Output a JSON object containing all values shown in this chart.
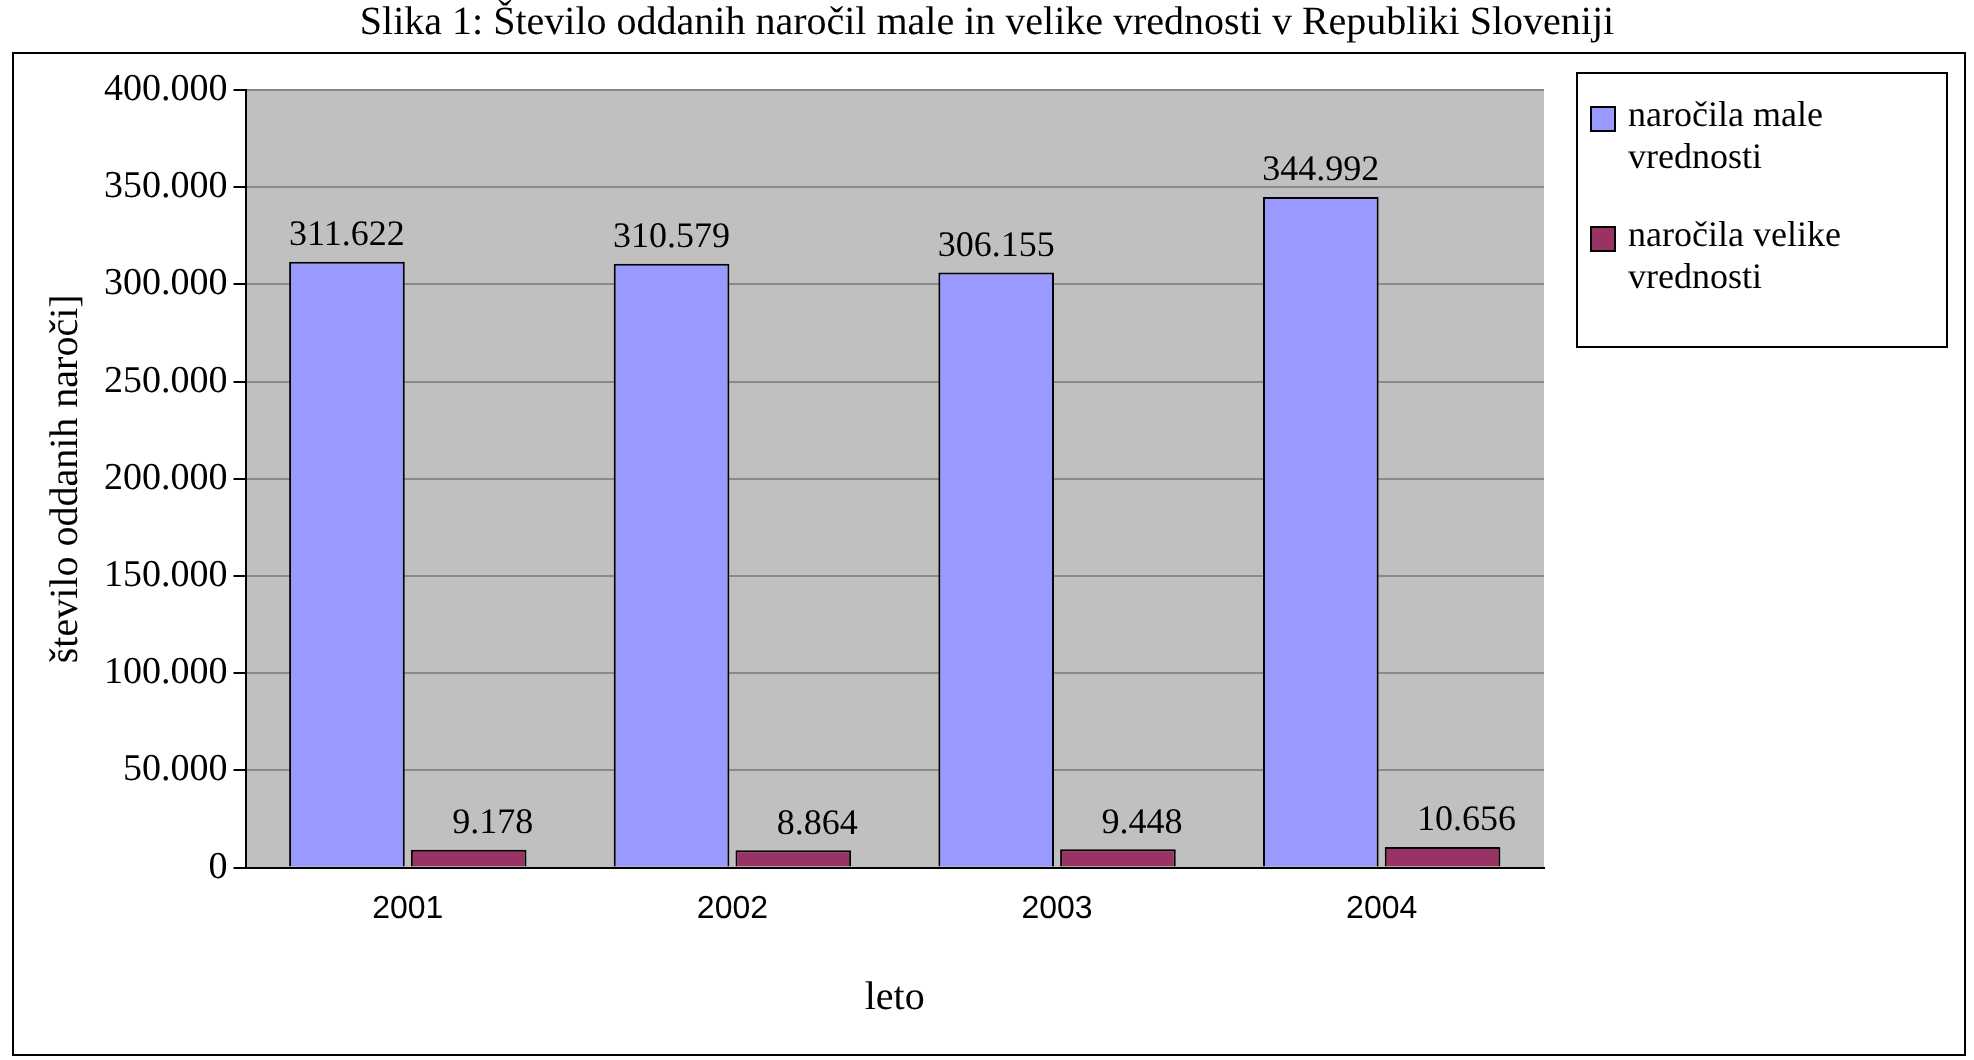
{
  "chart_data": {
    "type": "bar",
    "title": "Slika 1: Število oddanih naročil male in velike vrednosti v Republiki Sloveniji",
    "xlabel": "leto",
    "ylabel": "število oddanih naroči]",
    "categories": [
      "2001",
      "2002",
      "2003",
      "2004"
    ],
    "series": [
      {
        "name": "naročila male vrednosti",
        "color": "#9999ff",
        "values": [
          311622,
          310579,
          306155,
          344992
        ],
        "value_labels": [
          "311.622",
          "310.579",
          "306.155",
          "344.992"
        ]
      },
      {
        "name": "naročila velike vrednosti",
        "color": "#993366",
        "values": [
          9178,
          8864,
          9448,
          10656
        ],
        "value_labels": [
          "9.178",
          "8.864",
          "9.448",
          "10.656"
        ]
      }
    ],
    "ylim": [
      0,
      400000
    ],
    "yticks": [
      0,
      {
        "value": 50000,
        "label": "50.000"
      },
      {
        "value": 100000,
        "label": "100.000"
      },
      {
        "value": 150000,
        "label": "150.000"
      },
      {
        "value": 200000,
        "label": "200.000"
      },
      {
        "value": 250000,
        "label": "250.000"
      },
      {
        "value": 300000,
        "label": "300.000"
      },
      {
        "value": 350000,
        "label": "350.000"
      },
      {
        "value": 400000,
        "label": "400.000"
      }
    ],
    "grid": "y",
    "legend": "right"
  }
}
